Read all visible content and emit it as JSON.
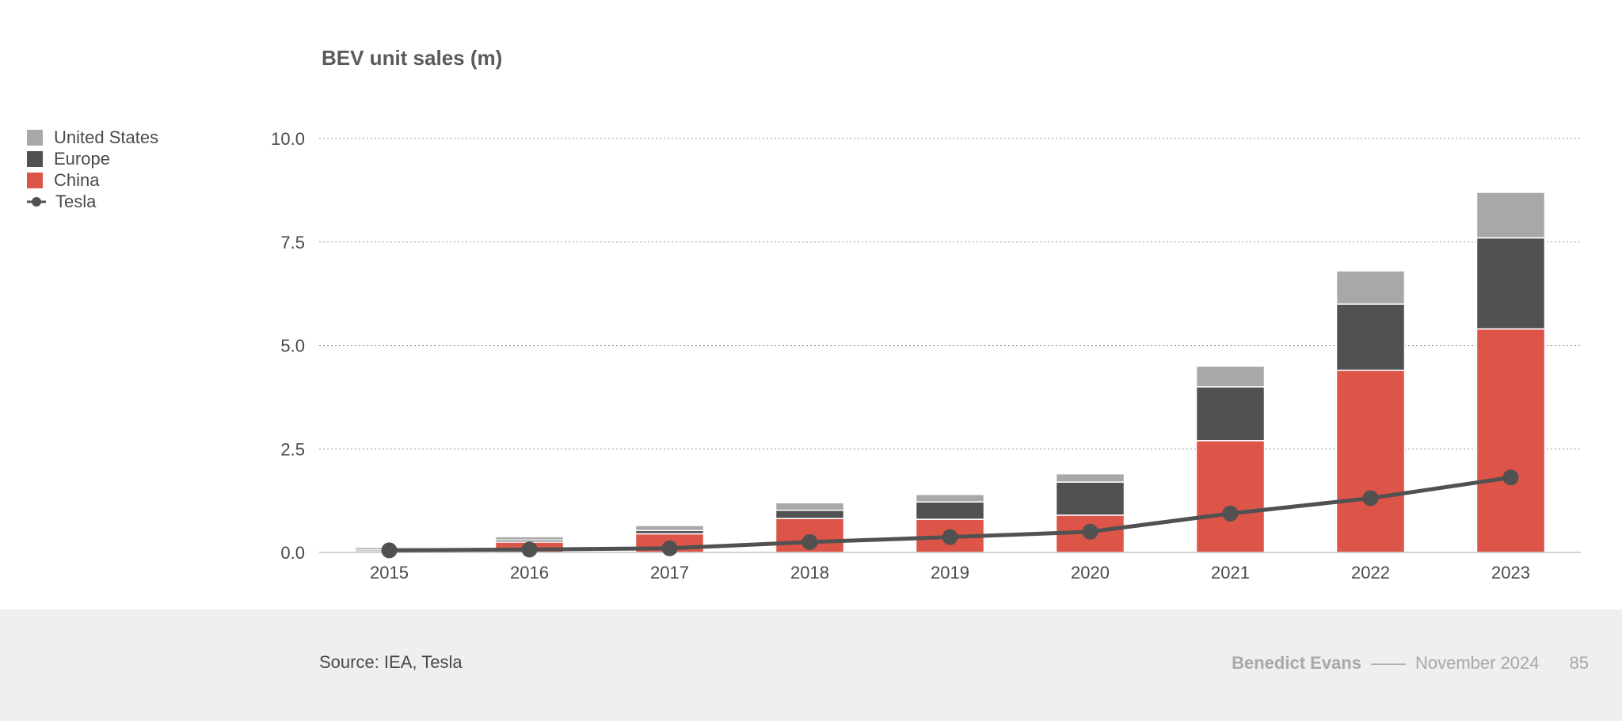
{
  "chart_data": {
    "type": "bar",
    "stacked": true,
    "title": "BEV unit sales (m)",
    "categories": [
      "2015",
      "2016",
      "2017",
      "2018",
      "2019",
      "2020",
      "2021",
      "2022",
      "2023"
    ],
    "ylim": [
      0,
      10
    ],
    "yticks": [
      "0.0",
      "2.5",
      "5.0",
      "7.5",
      "10.0"
    ],
    "grid": true,
    "legend_position": "left",
    "series": [
      {
        "name": "China",
        "type": "bar",
        "color": "#dc5548",
        "values": [
          0.02,
          0.25,
          0.45,
          0.82,
          0.8,
          0.9,
          2.7,
          4.4,
          5.4
        ]
      },
      {
        "name": "Europe",
        "type": "bar",
        "color": "#515151",
        "values": [
          0.04,
          0.05,
          0.08,
          0.2,
          0.42,
          0.8,
          1.3,
          1.6,
          2.2
        ]
      },
      {
        "name": "United States",
        "type": "bar",
        "color": "#a8a8a8",
        "values": [
          0.06,
          0.08,
          0.12,
          0.18,
          0.18,
          0.2,
          0.5,
          0.8,
          1.1
        ]
      },
      {
        "name": "Tesla",
        "type": "line",
        "color": "#515151",
        "values": [
          0.05,
          0.07,
          0.1,
          0.25,
          0.37,
          0.5,
          0.94,
          1.31,
          1.81
        ]
      }
    ]
  },
  "legend": {
    "items": [
      {
        "label": "United States",
        "color": "#a8a8a8",
        "kind": "swatch"
      },
      {
        "label": "Europe",
        "color": "#515151",
        "kind": "swatch"
      },
      {
        "label": "China",
        "color": "#dc5548",
        "kind": "swatch"
      },
      {
        "label": "Tesla",
        "color": "#515151",
        "kind": "line"
      }
    ]
  },
  "footer": {
    "source": "Source: IEA, Tesla",
    "author": "Benedict Evans",
    "separator": "——",
    "date": "November 2024",
    "page": "85"
  }
}
